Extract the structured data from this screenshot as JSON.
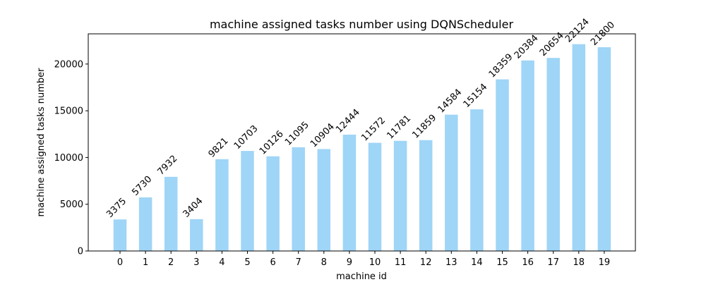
{
  "chart_data": {
    "type": "bar",
    "title": "machine assigned tasks number using DQNScheduler",
    "xlabel": "machine id",
    "ylabel": "machine assigned tasks number",
    "categories": [
      "0",
      "1",
      "2",
      "3",
      "4",
      "5",
      "6",
      "7",
      "8",
      "9",
      "10",
      "11",
      "12",
      "13",
      "14",
      "15",
      "16",
      "17",
      "18",
      "19"
    ],
    "values": [
      3375,
      5730,
      7932,
      3404,
      9821,
      10703,
      10126,
      11095,
      10904,
      12444,
      11572,
      11781,
      11859,
      14584,
      15154,
      18359,
      20384,
      20654,
      22124,
      21800
    ],
    "data_labels": [
      "3375",
      "5730",
      "7932",
      "3404",
      "9821",
      "10703",
      "10126",
      "11095",
      "10904",
      "12444",
      "11572",
      "11781",
      "11859",
      "14584",
      "15154",
      "18359",
      "20384",
      "20654",
      "22124",
      "21800"
    ],
    "yticks": [
      0,
      5000,
      10000,
      15000,
      20000
    ],
    "ytick_labels": [
      "0",
      "5000",
      "10000",
      "15000",
      "20000"
    ],
    "ylim": [
      0,
      23230
    ],
    "grid": false,
    "bar_color": "#9fd5f7"
  }
}
